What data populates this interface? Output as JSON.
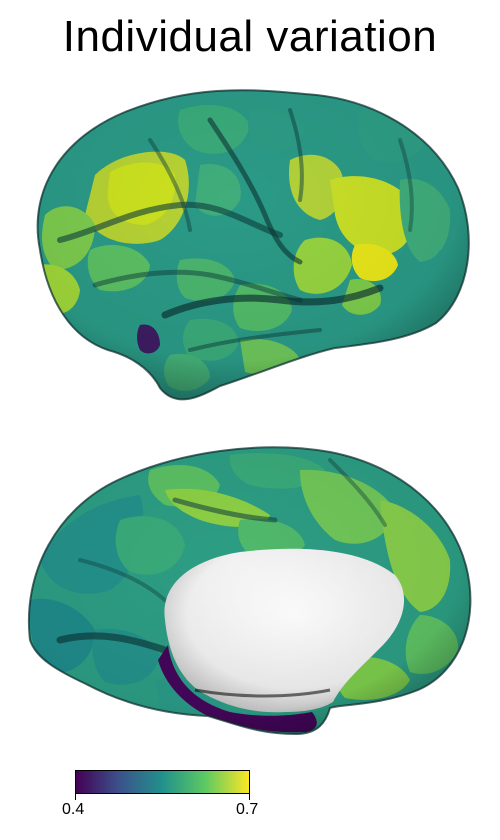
{
  "figure": {
    "title": "Individual variation"
  },
  "colorbar": {
    "colormap": "viridis",
    "min_label": "0.4",
    "max_label": "0.7",
    "colors": [
      "#440154",
      "#3b528b",
      "#21918c",
      "#5ec962",
      "#fde725"
    ]
  },
  "views": [
    "lateral",
    "medial"
  ]
}
